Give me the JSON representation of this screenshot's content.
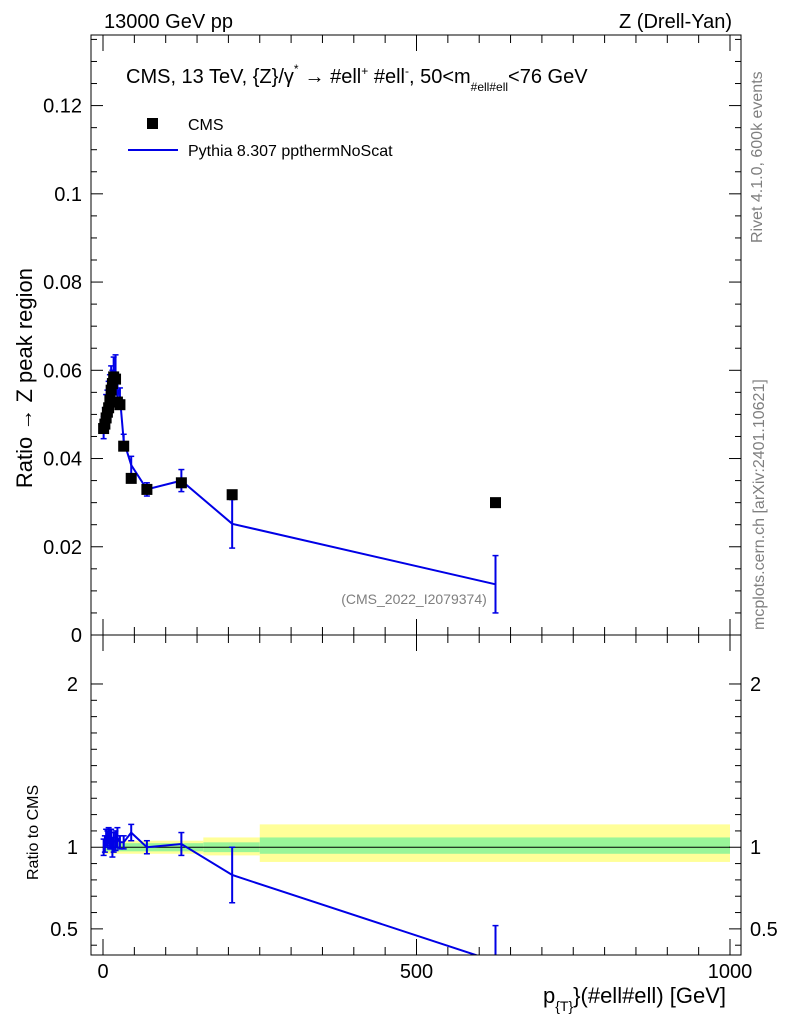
{
  "header": {
    "left": "13000 GeV pp",
    "right": "Z (Drell-Yan)"
  },
  "side_labels": {
    "rivet": "Rivet 4.1.0,  600k events",
    "mcplots": "mcplots.cern.ch [arXiv:2401.10621]"
  },
  "legend": {
    "title_main": "CMS, 13 TeV, {Z}/γ",
    "title_star": "*",
    "title_arrow": "→  #ell",
    "title_plus": "+",
    "title_ell2": " #ell",
    "title_minus": "-",
    "title_range": ",  50<m",
    "title_sub": "#ell#ell",
    "title_end": "<76 GeV",
    "entries": [
      "CMS",
      "Pythia 8.307 ppthermNoScat"
    ]
  },
  "watermark": "(CMS_2022_I2079374)",
  "colors": {
    "data": "#000000",
    "mc": "#0000e6",
    "band_inner": "#99f599",
    "band_outer": "#ffff99"
  },
  "chart_data": [
    {
      "type": "scatter",
      "panel": "main",
      "ylabel": "Ratio → Z peak region",
      "xlim": [
        -10,
        1010
      ],
      "ylim": [
        0,
        0.136
      ],
      "x_ticks": [
        0,
        500,
        1000
      ],
      "y_ticks": [
        0,
        0.02,
        0.04,
        0.06,
        0.08,
        0.1,
        0.12
      ],
      "y_tick_labels": [
        "0",
        "0.02",
        "0.04",
        "0.06",
        "0.08",
        "0.1",
        "0.12"
      ],
      "series": [
        {
          "name": "CMS",
          "style": "markers",
          "x": [
            1,
            3,
            5,
            7,
            9,
            11,
            13,
            15,
            17,
            20,
            23,
            27,
            33,
            45,
            70,
            125,
            206,
            626
          ],
          "y": [
            0.0468,
            0.0478,
            0.0492,
            0.0505,
            0.0515,
            0.0532,
            0.0555,
            0.057,
            0.0585,
            0.058,
            0.0528,
            0.0522,
            0.0428,
            0.0355,
            0.033,
            0.0345,
            0.0318,
            0.03
          ],
          "yerr": [
            0.0004,
            0.0004,
            0.0004,
            0.0004,
            0.0004,
            0.0004,
            0.0004,
            0.0004,
            0.0004,
            0.0004,
            0.0004,
            0.0004,
            0.0004,
            0.0004,
            0.0004,
            0.0004,
            0.0004,
            0.0004
          ]
        },
        {
          "name": "Pythia 8.307 ppthermNoScat",
          "style": "line",
          "x": [
            1,
            3,
            5,
            7,
            9,
            11,
            13,
            15,
            17,
            20,
            23,
            27,
            33,
            45,
            70,
            125,
            206,
            626
          ],
          "y": [
            0.047,
            0.049,
            0.052,
            0.053,
            0.055,
            0.056,
            0.058,
            0.057,
            0.06,
            0.06,
            0.056,
            0.054,
            0.044,
            0.0385,
            0.033,
            0.035,
            0.0252,
            0.0115
          ],
          "yerr": [
            0.0025,
            0.0025,
            0.0025,
            0.0025,
            0.0025,
            0.003,
            0.003,
            0.003,
            0.003,
            0.0035,
            0.003,
            0.002,
            0.0015,
            0.002,
            0.0015,
            0.0025,
            0.0055,
            0.0065
          ]
        }
      ]
    },
    {
      "type": "line",
      "panel": "ratio",
      "ylabel": "Ratio to CMS",
      "xlabel_main": "p",
      "xlabel_sub": "{T}",
      "xlabel_rest": "}(#ell#ell) [GeV]",
      "xlim": [
        -10,
        1010
      ],
      "ylim": [
        0.34,
        2.3
      ],
      "x_ticks": [
        0,
        500,
        1000
      ],
      "x_tick_labels": [
        "0",
        "500",
        "1000"
      ],
      "y_ticks": [
        0.5,
        1,
        2
      ],
      "y_tick_labels": [
        "0.5",
        "1",
        "2"
      ],
      "band_segments": [
        {
          "x0": 0,
          "x1": 160,
          "inner": [
            0.975,
            1.025
          ],
          "outer": [
            0.96,
            1.04
          ]
        },
        {
          "x0": 160,
          "x1": 250,
          "inner": [
            0.97,
            1.03
          ],
          "outer": [
            0.95,
            1.06
          ]
        },
        {
          "x0": 250,
          "x1": 1000,
          "inner": [
            0.96,
            1.06
          ],
          "outer": [
            0.91,
            1.14
          ]
        }
      ],
      "series": [
        {
          "name": "Pythia 8.307 ppthermNoScat",
          "x": [
            1,
            3,
            5,
            7,
            9,
            11,
            13,
            15,
            17,
            20,
            23,
            27,
            33,
            45,
            70,
            125,
            206,
            626
          ],
          "y": [
            1.0,
            1.02,
            1.06,
            1.05,
            1.07,
            1.05,
            1.05,
            1.0,
            1.03,
            1.04,
            1.06,
            1.03,
            1.03,
            1.09,
            1.0,
            1.02,
            0.83,
            0.3
          ],
          "yerr": [
            0.05,
            0.05,
            0.05,
            0.05,
            0.05,
            0.06,
            0.06,
            0.06,
            0.06,
            0.06,
            0.06,
            0.04,
            0.04,
            0.05,
            0.04,
            0.07,
            0.17,
            0.22
          ]
        }
      ]
    }
  ]
}
